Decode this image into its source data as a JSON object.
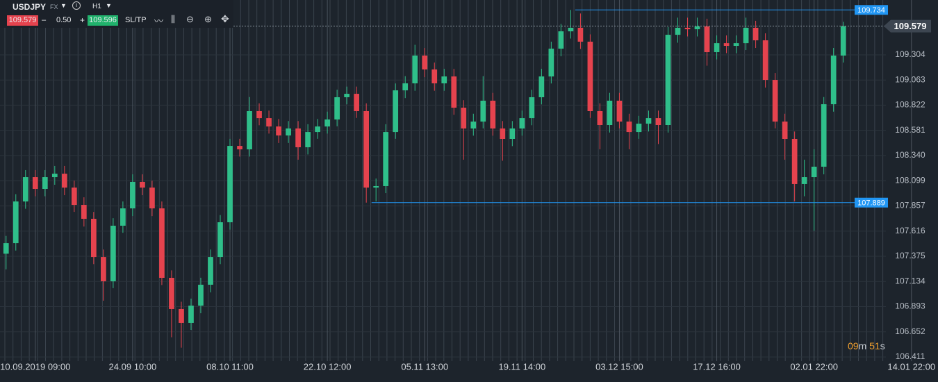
{
  "toolbar": {
    "symbol": "USDJPY",
    "market": "FX",
    "timeframe": "H1",
    "sell_price": "109.579",
    "minus": "–",
    "volume": "0.50",
    "plus": "+",
    "buy_price": "109.596",
    "sltp": "SL/TP"
  },
  "timer": {
    "minutes": "09",
    "minutes_unit": "m",
    "seconds": "51",
    "seconds_unit": "s"
  },
  "chart_data": {
    "type": "candlestick",
    "up_color": "#2fbf8a",
    "down_color": "#e5434e",
    "grid": true,
    "x": [
      -72,
      -48,
      -24,
      0,
      24,
      48,
      72,
      96,
      120,
      144,
      168,
      192,
      216,
      240,
      264,
      288,
      312,
      336,
      360,
      384,
      408,
      432,
      456,
      480,
      504,
      528,
      552,
      576,
      600,
      624,
      648,
      672,
      696,
      720,
      744,
      768,
      792,
      816,
      840,
      864,
      888,
      912,
      936,
      960,
      984,
      1008,
      1032,
      1056,
      1080,
      1104,
      1128,
      1152,
      1176,
      1200,
      1224,
      1248,
      1272,
      1296,
      1320,
      1344,
      1368,
      1392,
      1416,
      1440,
      1464,
      1488,
      1512,
      1536,
      1560,
      1584,
      1608,
      1632,
      1656,
      1680,
      1704,
      1728,
      1752,
      1776,
      1800,
      1824,
      1848,
      1872,
      1896,
      1920,
      1944,
      1968,
      1992
    ],
    "open": [
      107.4,
      107.501,
      107.9,
      108.133,
      108.02,
      108.133,
      108.166,
      108.033,
      107.867,
      107.734,
      107.368,
      107.136,
      107.668,
      107.834,
      108.087,
      108.033,
      107.834,
      107.169,
      106.87,
      106.737,
      106.903,
      107.103,
      107.368,
      107.701,
      108.432,
      108.399,
      108.765,
      108.698,
      108.618,
      108.532,
      108.599,
      108.419,
      108.565,
      108.618,
      108.685,
      108.898,
      108.931,
      108.765,
      108.033,
      108.047,
      108.565,
      108.964,
      109.031,
      109.297,
      109.164,
      109.031,
      109.097,
      108.798,
      108.599,
      108.665,
      108.865,
      108.599,
      108.499,
      108.599,
      108.698,
      108.898,
      109.097,
      109.363,
      109.529,
      109.563,
      109.43,
      108.765,
      108.632,
      108.865,
      108.665,
      108.565,
      108.645,
      108.698,
      108.632,
      109.496,
      109.563,
      109.549,
      109.576,
      109.33,
      109.416,
      109.39,
      109.416,
      109.563,
      109.443,
      109.064,
      108.665,
      108.499,
      108.067,
      108.133,
      108.233,
      108.831,
      109.297
    ],
    "high": [
      107.57,
      107.97,
      108.2,
      108.2,
      108.2,
      108.24,
      108.24,
      108.1,
      107.94,
      107.8,
      107.44,
      107.74,
      107.9,
      108.16,
      108.16,
      108.1,
      107.9,
      107.24,
      106.94,
      106.97,
      107.17,
      107.44,
      107.77,
      108.5,
      108.5,
      108.9,
      108.84,
      108.77,
      108.69,
      108.67,
      108.67,
      108.64,
      108.69,
      108.76,
      108.97,
      109.0,
      109.0,
      108.84,
      108.12,
      108.64,
      109.03,
      109.1,
      109.4,
      109.37,
      109.23,
      109.17,
      109.17,
      108.87,
      108.74,
      109.1,
      108.94,
      108.67,
      108.67,
      108.77,
      108.97,
      109.17,
      109.43,
      109.6,
      109.734,
      109.7,
      109.5,
      108.84,
      108.94,
      108.94,
      108.74,
      108.72,
      108.77,
      108.77,
      109.57,
      109.66,
      109.66,
      109.66,
      109.65,
      109.49,
      109.49,
      109.49,
      109.66,
      109.63,
      109.51,
      109.13,
      108.74,
      108.57,
      108.3,
      108.4,
      108.9,
      109.37,
      109.62
    ],
    "low": [
      107.25,
      107.43,
      107.83,
      107.95,
      107.95,
      108.06,
      107.96,
      107.8,
      107.66,
      107.3,
      106.95,
      107.07,
      107.6,
      107.76,
      107.96,
      107.76,
      107.1,
      106.6,
      106.5,
      106.67,
      106.83,
      107.03,
      107.3,
      107.63,
      108.33,
      108.33,
      108.63,
      108.55,
      108.46,
      108.46,
      108.3,
      108.35,
      108.5,
      108.55,
      108.62,
      108.83,
      108.7,
      107.889,
      107.9,
      107.98,
      108.5,
      108.89,
      108.96,
      109.09,
      108.96,
      108.96,
      108.73,
      108.3,
      108.53,
      108.6,
      108.53,
      108.29,
      108.43,
      108.53,
      108.63,
      108.83,
      109.03,
      109.29,
      109.46,
      109.36,
      108.7,
      108.4,
      108.56,
      108.6,
      108.4,
      108.5,
      108.57,
      108.45,
      108.56,
      109.42,
      109.48,
      109.48,
      109.2,
      109.26,
      109.32,
      109.32,
      109.35,
      109.37,
      108.99,
      108.6,
      108.3,
      107.9,
      107.95,
      107.62,
      108.16,
      108.76,
      109.23
    ],
    "close": [
      107.501,
      107.9,
      108.133,
      108.02,
      108.133,
      108.166,
      108.033,
      107.867,
      107.734,
      107.368,
      107.136,
      107.668,
      107.834,
      108.087,
      108.033,
      107.834,
      107.169,
      106.87,
      106.737,
      106.903,
      107.103,
      107.368,
      107.701,
      108.432,
      108.399,
      108.765,
      108.698,
      108.618,
      108.532,
      108.599,
      108.419,
      108.565,
      108.618,
      108.685,
      108.898,
      108.931,
      108.765,
      108.033,
      108.047,
      108.565,
      108.964,
      109.031,
      109.297,
      109.164,
      109.031,
      109.097,
      108.798,
      108.599,
      108.665,
      108.865,
      108.599,
      108.499,
      108.599,
      108.698,
      108.898,
      109.097,
      109.363,
      109.529,
      109.563,
      109.43,
      108.765,
      108.632,
      108.865,
      108.665,
      108.565,
      108.645,
      108.698,
      108.632,
      109.496,
      109.563,
      109.549,
      109.576,
      109.33,
      109.416,
      109.39,
      109.416,
      109.563,
      109.443,
      109.064,
      108.665,
      108.499,
      108.067,
      108.133,
      108.233,
      108.831,
      109.297,
      109.579
    ],
    "xlim": [
      -87,
      2097
    ],
    "xticks": [
      {
        "value": 0,
        "label": "10.09.2019 09:00"
      },
      {
        "value": 240,
        "label": "24.09 10:00"
      },
      {
        "value": 480,
        "label": "08.10 11:00"
      },
      {
        "value": 720,
        "label": "22.10 12:00"
      },
      {
        "value": 960,
        "label": "05.11 13:00"
      },
      {
        "value": 1200,
        "label": "19.11 14:00"
      },
      {
        "value": 1440,
        "label": "03.12 15:00"
      },
      {
        "value": 1680,
        "label": "17.12 16:00"
      },
      {
        "value": 1920,
        "label": "02.01 22:00"
      },
      {
        "value": 2160,
        "label": "14.01 22:00"
      }
    ],
    "ylim": [
      106.371,
      109.829
    ],
    "yticks": [
      106.411,
      106.652,
      106.893,
      107.134,
      107.375,
      107.616,
      107.857,
      108.099,
      {
        "value": 108.34,
        "label": "108.340"
      },
      108.581,
      108.822,
      109.063,
      109.304
    ],
    "hlines": [
      {
        "value": 109.734,
        "start": 1331,
        "color": "#2196f3"
      },
      {
        "value": 107.889,
        "start": 829,
        "color": "#2196f3"
      }
    ],
    "current_price": 109.579
  }
}
